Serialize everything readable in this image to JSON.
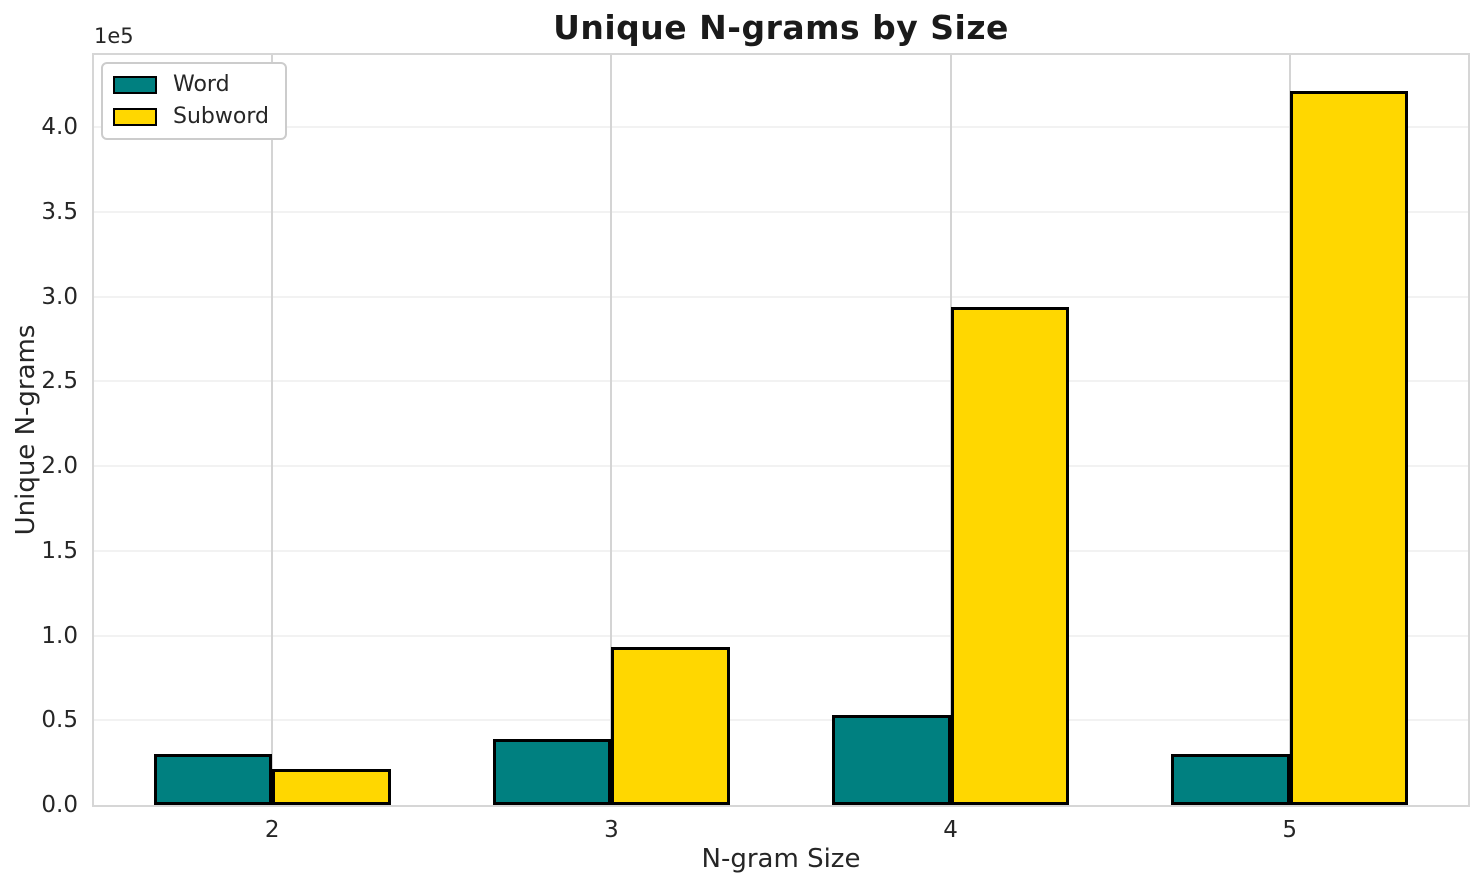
{
  "chart_data": {
    "type": "bar",
    "title": "Unique N-grams by Size",
    "xlabel": "N-gram Size",
    "ylabel": "Unique N-grams",
    "offset_text": "1e5",
    "categories": [
      2,
      3,
      4,
      5
    ],
    "category_labels": [
      "2",
      "3",
      "4",
      "5"
    ],
    "series": [
      {
        "name": "Word",
        "color": "#008080",
        "values": [
          30000,
          39000,
          53000,
          30000
        ]
      },
      {
        "name": "Subword",
        "color": "#FFD700",
        "values": [
          21000,
          93000,
          294000,
          421500
        ]
      }
    ],
    "bar_width": 0.35,
    "bar_edge_color": "#000000",
    "xlim": [
      1.4745,
      5.5255
    ],
    "ylim": [
      0,
      442500
    ],
    "ytick_values": [
      0,
      50000,
      100000,
      150000,
      200000,
      250000,
      300000,
      350000,
      400000
    ],
    "ytick_labels": [
      "0.0",
      "0.5",
      "1.0",
      "1.5",
      "2.0",
      "2.5",
      "3.0",
      "3.5",
      "4.0"
    ],
    "legend": {
      "position": "upper-left",
      "entries": [
        "Word",
        "Subword"
      ]
    },
    "grid": {
      "horizontal": true,
      "vertical": true
    },
    "colors": {
      "background": "#ffffff",
      "spine": "#d6d6d6",
      "hgrid": "#f2f2f2",
      "vgrid": "#d4d4d4",
      "text": "#262626",
      "title_text": "#1a1a1a"
    }
  }
}
